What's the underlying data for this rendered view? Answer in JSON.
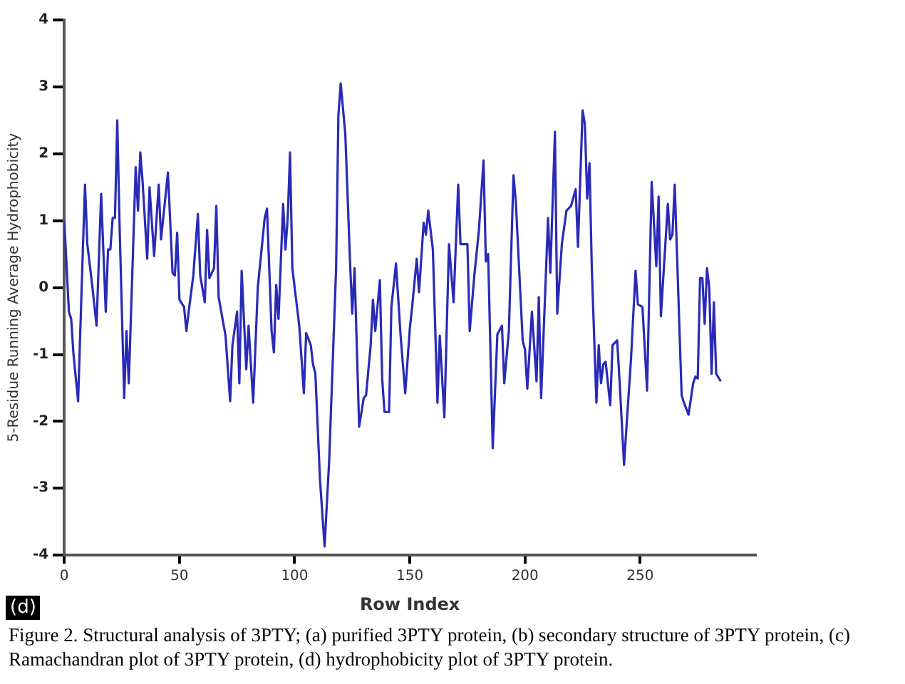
{
  "chart_data": {
    "type": "line",
    "xlabel": "Row Index",
    "ylabel": "5-Residue Running Average Hydrophobicity",
    "x": [
      0,
      2,
      3,
      4,
      6,
      8,
      9,
      10,
      12,
      14,
      16,
      18,
      19,
      20,
      21,
      22,
      23,
      24,
      26,
      27,
      28,
      31,
      32,
      33,
      34,
      36,
      37,
      39,
      41,
      42,
      45,
      47,
      48,
      49,
      50,
      52,
      53,
      54,
      56,
      58,
      59,
      61,
      62,
      63,
      65,
      66,
      67,
      70,
      72,
      73,
      75,
      76,
      77,
      79,
      80,
      82,
      84,
      87,
      88,
      90,
      91,
      92,
      93,
      95,
      96,
      97,
      98,
      99,
      102,
      104,
      105,
      107,
      108,
      109,
      111,
      113,
      115,
      118,
      119,
      120,
      122,
      124,
      125,
      126,
      128,
      130,
      131,
      133,
      134,
      135,
      137,
      138,
      139,
      141,
      142,
      144,
      146,
      148,
      150,
      151,
      153,
      154,
      156,
      157,
      158,
      160,
      162,
      163,
      165,
      167,
      169,
      171,
      172,
      175,
      176,
      178,
      180,
      182,
      183,
      184,
      186,
      188,
      190,
      191,
      193,
      195,
      196,
      199,
      200,
      201,
      203,
      205,
      206,
      207,
      210,
      211,
      213,
      214,
      216,
      218,
      220,
      222,
      223,
      225,
      226,
      227,
      228,
      229,
      231,
      232,
      233,
      234,
      235,
      237,
      238,
      240,
      241,
      243,
      244,
      246,
      248,
      249,
      251,
      253,
      255,
      257,
      258,
      259,
      262,
      263,
      264,
      265,
      268,
      269,
      271,
      273,
      274,
      275,
      276,
      277,
      278,
      279,
      280,
      281,
      282,
      283,
      285
    ],
    "series": [
      {
        "color": "#2a2ab8",
        "values": [
          1.0,
          -0.36,
          -0.47,
          -1.0,
          -1.7,
          0.5,
          1.54,
          0.65,
          0.07,
          -0.57,
          1.4,
          -0.36,
          0.57,
          0.57,
          1.04,
          1.04,
          2.5,
          0.93,
          -1.65,
          -0.65,
          -1.43,
          1.8,
          1.15,
          2.02,
          1.58,
          0.43,
          1.5,
          0.47,
          1.54,
          0.72,
          1.72,
          0.22,
          0.18,
          0.82,
          -0.18,
          -0.29,
          -0.65,
          -0.36,
          0.18,
          1.1,
          0.18,
          -0.22,
          0.86,
          0.14,
          0.29,
          1.22,
          -0.14,
          -0.72,
          -1.7,
          -0.86,
          -0.36,
          -1.43,
          0.25,
          -1.22,
          -0.57,
          -1.72,
          0,
          1.04,
          1.18,
          -0.65,
          -0.97,
          0.04,
          -0.47,
          1.25,
          0.57,
          1.04,
          2.02,
          0.29,
          -0.57,
          -1.58,
          -0.68,
          -0.86,
          -1.15,
          -1.29,
          -2.87,
          -3.87,
          -2.58,
          0.29,
          2.58,
          3.05,
          2.29,
          0.43,
          -0.39,
          0.29,
          -2.08,
          -1.65,
          -1.61,
          -0.86,
          -0.18,
          -0.65,
          0.11,
          -1.36,
          -1.86,
          -1.86,
          -0.29,
          0.36,
          -0.72,
          -1.58,
          -0.61,
          -0.29,
          0.43,
          -0.07,
          0.97,
          0.79,
          1.15,
          0.57,
          -1.72,
          -0.72,
          -1.94,
          0.65,
          -0.22,
          1.54,
          0.65,
          0.65,
          -0.65,
          0.18,
          0.86,
          1.9,
          0.39,
          0.5,
          -2.4,
          -0.7,
          -0.57,
          -1.43,
          -0.65,
          1.68,
          1.29,
          -0.79,
          -0.93,
          -1.51,
          -0.36,
          -1.4,
          -0.14,
          -1.65,
          1.04,
          0.22,
          2.33,
          -0.39,
          0.65,
          1.15,
          1.22,
          1.47,
          0.61,
          2.65,
          2.44,
          1.33,
          1.86,
          0.29,
          -1.72,
          -0.86,
          -1.43,
          -1.15,
          -1.11,
          -1.76,
          -0.86,
          -0.79,
          -1.36,
          -2.65,
          -2.11,
          -1.08,
          0.25,
          -0.25,
          -0.29,
          -1.54,
          1.58,
          0.32,
          1.36,
          -0.43,
          1.25,
          0.72,
          0.79,
          1.54,
          -1.61,
          -1.72,
          -1.9,
          -1.43,
          -1.33,
          -1.36,
          0.14,
          0.14,
          -0.54,
          0.29,
          0,
          -1.29,
          -0.22,
          -1.29,
          -1.4
        ]
      }
    ],
    "xlim": [
      0,
      300
    ],
    "xticks": [
      0,
      50,
      100,
      150,
      200,
      250
    ],
    "ylim": [
      -4,
      4
    ],
    "yticks": [
      -4,
      -3,
      -2,
      -1,
      0,
      1,
      2,
      3,
      4
    ],
    "legend": false,
    "marker": "none",
    "line_style": "solid",
    "annotations": [
      "(d)",
      "Figure 2. Structural analysis of 3PTY; (a) purified 3PTY protein, (b) secondary structure of 3PTY protein, (c) Ramachandran plot of 3PTY protein, (d) hydrophobicity plot of 3PTY protein."
    ]
  }
}
